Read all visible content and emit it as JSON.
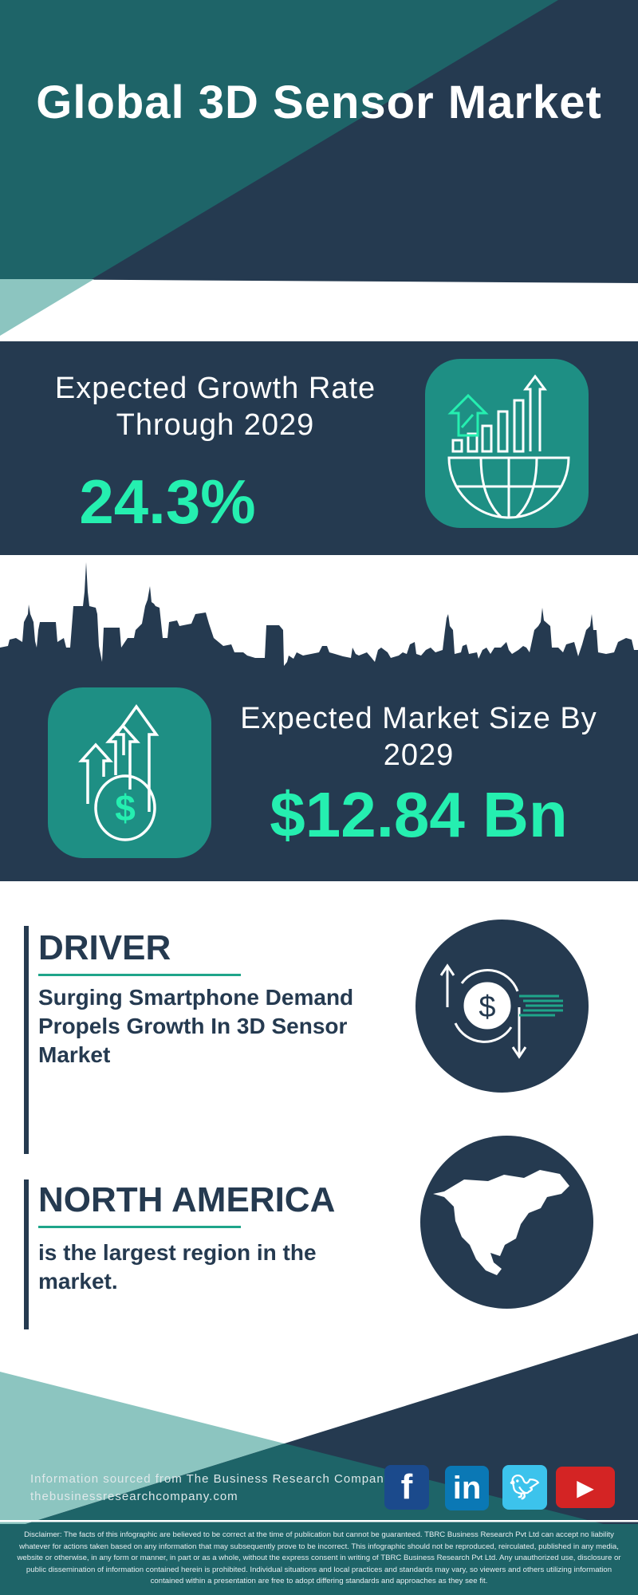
{
  "title": "Global 3D Sensor Market",
  "growth": {
    "label": "Expected Growth Rate Through 2029",
    "value": "24.3%",
    "icon": "globe-bar-chart-icon"
  },
  "market_size": {
    "label": "Expected Market Size By 2029",
    "value": "$12.84 Bn",
    "icon": "dollar-arrows-up-icon"
  },
  "driver": {
    "heading": "DRIVER",
    "text": "Surging Smartphone Demand Propels Growth In 3D Sensor Market",
    "icon": "dollar-exchange-icon"
  },
  "region": {
    "heading": "NORTH AMERICA",
    "text": "is the largest region in the market.",
    "icon": "north-america-map-icon"
  },
  "footer": {
    "source": "Information sourced from The Business Research Company",
    "website": "thebusinessresearchcompany.com",
    "social": [
      "facebook",
      "linkedin",
      "twitter",
      "youtube"
    ],
    "disclaimer": "Disclaimer: The facts of this infographic are believed to be correct at the time of publication but cannot be guaranteed. TBRC Business Research Pvt Ltd can accept no liability whatever for actions taken based on any information that may subsequently prove to be incorrect. This infographic should not be reproduced, reirculated, published in any media, website or otherwise, in any form or manner, in part or as a whole, without the express consent in writing of TBRC Business Research Pvt Ltd. Any unauthorized use, disclosure or public dissemination of information contained herein is prohibited. Individual situations and local practices and standards may vary, so viewers and others utilizing information contained within a presentation are free to adopt differing standards and approaches as they see fit."
  },
  "colors": {
    "navy": "#253a50",
    "teal": "#1e6468",
    "light_teal": "#8cc5c0",
    "accent_green": "#25efb0",
    "icon_box": "#1e8f84"
  }
}
